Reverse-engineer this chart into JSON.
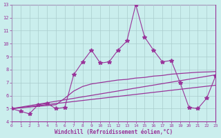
{
  "xlabel": "Windchill (Refroidissement éolien,°C)",
  "bg_color": "#caeeed",
  "grid_color": "#aacccc",
  "line_color": "#993399",
  "xlim": [
    0,
    23
  ],
  "ylim": [
    4,
    13
  ],
  "xticks": [
    0,
    1,
    2,
    3,
    4,
    5,
    6,
    7,
    8,
    9,
    10,
    11,
    12,
    13,
    14,
    15,
    16,
    17,
    18,
    19,
    20,
    21,
    22,
    23
  ],
  "yticks": [
    4,
    5,
    6,
    7,
    8,
    9,
    10,
    11,
    12,
    13
  ],
  "series1_x": [
    0,
    1,
    2,
    3,
    4,
    5,
    6,
    7,
    8,
    9,
    10,
    11,
    12,
    13,
    14,
    15,
    16,
    17,
    18,
    19,
    20,
    21,
    22,
    23
  ],
  "series1_y": [
    5.0,
    4.8,
    4.6,
    5.3,
    5.4,
    5.0,
    5.1,
    7.6,
    8.6,
    9.5,
    8.5,
    8.6,
    9.5,
    10.2,
    13.0,
    10.5,
    9.5,
    8.6,
    8.7,
    7.0,
    5.1,
    5.0,
    5.8,
    7.5
  ],
  "series2_x": [
    0,
    23
  ],
  "series2_y": [
    5.0,
    7.6
  ],
  "series3_x": [
    0,
    5,
    6,
    7,
    8,
    9,
    10,
    11,
    12,
    13,
    14,
    15,
    16,
    17,
    18,
    19,
    20,
    21,
    22,
    23
  ],
  "series3_y": [
    5.0,
    5.3,
    5.8,
    6.35,
    6.7,
    6.9,
    7.0,
    7.1,
    7.2,
    7.25,
    7.35,
    7.4,
    7.5,
    7.55,
    7.65,
    7.7,
    7.75,
    7.8,
    7.82,
    7.85
  ],
  "series4_x": [
    0,
    23
  ],
  "series4_y": [
    5.0,
    6.8
  ]
}
